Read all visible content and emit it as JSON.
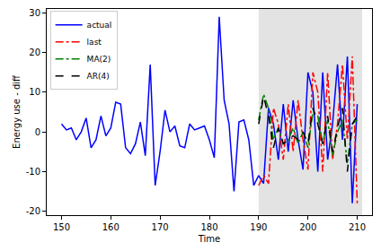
{
  "chart_data": {
    "type": "line",
    "x_label": "Time",
    "y_label": "Energy use - diff",
    "xlim": [
      147,
      213
    ],
    "xticks": [
      150,
      160,
      170,
      180,
      190,
      200,
      210
    ],
    "ylim": [
      -21,
      31
    ],
    "yticks": [
      -20,
      -10,
      0,
      10,
      20,
      30
    ],
    "grid": false,
    "legend": "upper left",
    "shaded_span": [
      190,
      211
    ],
    "series": [
      {
        "name": "actual",
        "color": "#0000ff",
        "line_style": "solid",
        "x": [
          150,
          151,
          152,
          153,
          154,
          155,
          156,
          157,
          158,
          159,
          160,
          161,
          162,
          163,
          164,
          165,
          166,
          167,
          168,
          169,
          170,
          171,
          172,
          173,
          174,
          175,
          176,
          177,
          178,
          179,
          180,
          181,
          182,
          183,
          184,
          185,
          186,
          187,
          188,
          189,
          190,
          191,
          192,
          193,
          194,
          195,
          196,
          197,
          198,
          199,
          200,
          201,
          202,
          203,
          204,
          205,
          206,
          207,
          208,
          209,
          210
        ],
        "values": [
          2,
          0.5,
          1,
          -2,
          0,
          3.5,
          -4,
          -2,
          4,
          -1,
          1,
          7.5,
          7,
          -4,
          -5.5,
          -3,
          2.5,
          -6,
          17,
          -13.5,
          -5,
          5.5,
          0,
          1.5,
          -3.5,
          -4,
          2,
          0.5,
          1,
          1.5,
          -2,
          -6.5,
          29,
          8,
          2,
          -15,
          2.5,
          3,
          -2,
          -13.5,
          -11,
          -13,
          6,
          2,
          -7,
          7,
          -5,
          8,
          -2,
          -9.5,
          15,
          10,
          -10,
          15,
          -7,
          2,
          17,
          -2,
          19,
          -18,
          7
        ]
      },
      {
        "name": "last",
        "color": "#ff0000",
        "line_style": "dashdot",
        "x": [
          190,
          191,
          192,
          193,
          194,
          195,
          196,
          197,
          198,
          199,
          200,
          201,
          202,
          203,
          204,
          205,
          206,
          207,
          208,
          209,
          210
        ],
        "values": [
          -13.5,
          -11,
          -13,
          6,
          2,
          -7,
          7,
          -5,
          8,
          -2,
          -9.5,
          15,
          10,
          -10,
          15,
          -7,
          2,
          17,
          -2,
          19,
          -18
        ]
      },
      {
        "name": "MA(2)",
        "color": "#008000",
        "line_style": "dashdot",
        "x": [
          190,
          191,
          192,
          193,
          194,
          195,
          196,
          197,
          198,
          199,
          200,
          201,
          202,
          203,
          204,
          205,
          206,
          207,
          208,
          209,
          210
        ],
        "values": [
          3,
          9.5,
          6,
          -2,
          1,
          -3,
          -2,
          1,
          -3,
          0,
          -4,
          5,
          4,
          -3,
          3,
          -6,
          0,
          3,
          -8,
          2,
          3
        ]
      },
      {
        "name": "AR(4)",
        "color": "#000000",
        "line_style": "dashed",
        "x": [
          190,
          191,
          192,
          193,
          194,
          195,
          196,
          197,
          198,
          199,
          200,
          201,
          202,
          203,
          204,
          205,
          206,
          207,
          208,
          209,
          210
        ],
        "values": [
          2,
          9,
          4,
          -4,
          1,
          -3,
          -2,
          -1,
          -2,
          0,
          -3,
          6,
          2,
          -3,
          4,
          -5,
          1,
          6,
          -10,
          2,
          4
        ]
      }
    ]
  }
}
